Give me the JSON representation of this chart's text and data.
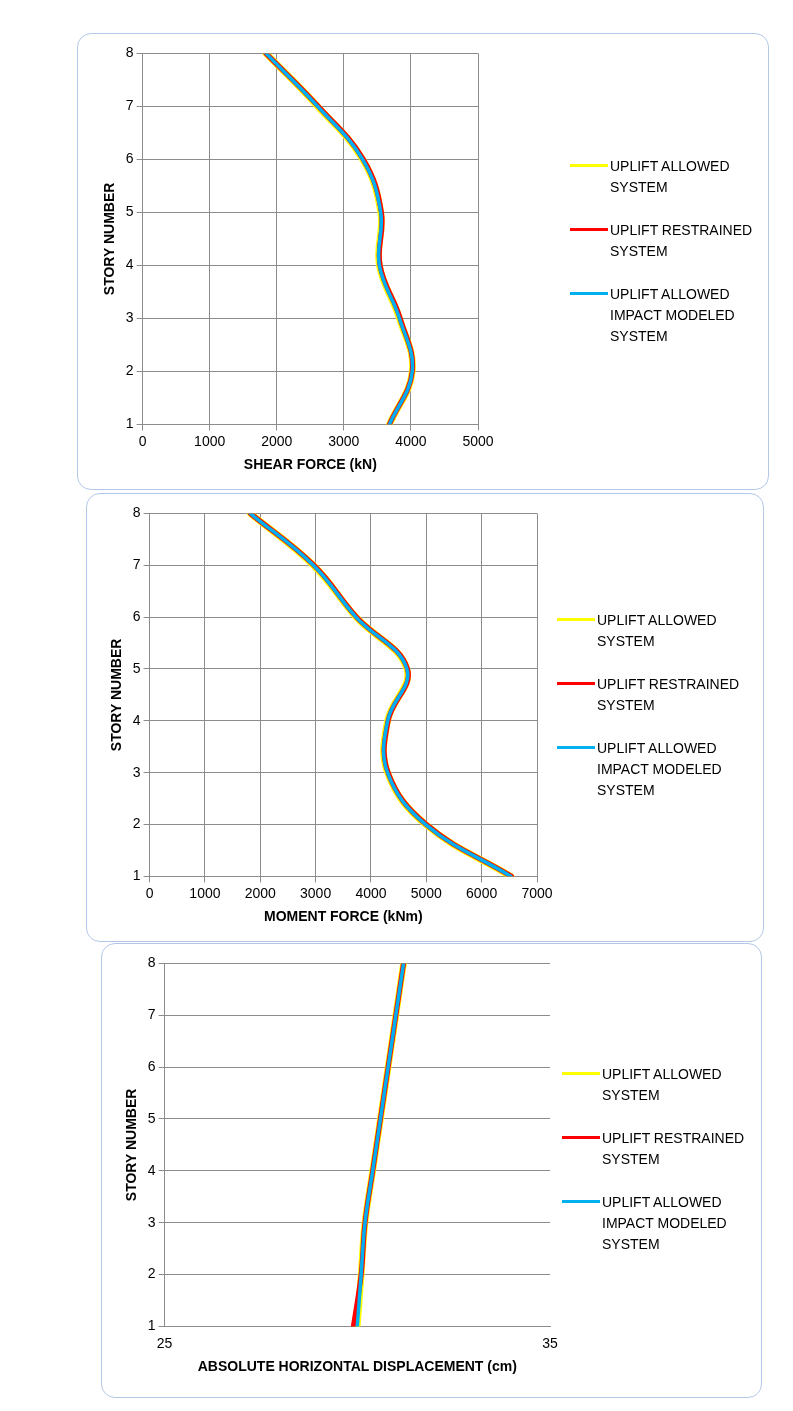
{
  "chart_data": [
    {
      "type": "line",
      "xlabel": "SHEAR FORCE (kN)",
      "ylabel": "STORY NUMBER",
      "xlim": [
        0,
        5000
      ],
      "xticks": [
        0,
        1000,
        2000,
        3000,
        4000,
        5000
      ],
      "ylim": [
        1,
        8
      ],
      "yticks": [
        1,
        2,
        3,
        4,
        5,
        6,
        7,
        8
      ],
      "grid": true,
      "legend": "right",
      "marker": "none",
      "series": [
        {
          "name": "UPLIFT ALLOWED SYSTEM",
          "color": "#ffff00",
          "x": [
            3680,
            4020,
            3830,
            3530,
            3550,
            3280,
            2610,
            1840
          ],
          "values": [
            1,
            2,
            3,
            4,
            5,
            6,
            7,
            8
          ]
        },
        {
          "name": "UPLIFT RESTRAINED SYSTEM",
          "color": "#ff0000",
          "x": [
            3680,
            4020,
            3840,
            3540,
            3560,
            3290,
            2620,
            1840
          ],
          "values": [
            1,
            2,
            3,
            4,
            5,
            6,
            7,
            8
          ]
        },
        {
          "name": "UPLIFT ALLOWED IMPACT MODELED SYSTEM",
          "color": "#00b0f0",
          "x": [
            3680,
            4020,
            3830,
            3530,
            3550,
            3280,
            2610,
            1840
          ],
          "values": [
            1,
            2,
            3,
            4,
            5,
            6,
            7,
            8
          ]
        }
      ]
    },
    {
      "type": "line",
      "xlabel": "MOMENT FORCE (kNm)",
      "ylabel": "STORY NUMBER",
      "xlim": [
        0,
        7000
      ],
      "xticks": [
        0,
        1000,
        2000,
        3000,
        4000,
        5000,
        6000,
        7000
      ],
      "ylim": [
        1,
        8
      ],
      "yticks": [
        1,
        2,
        3,
        4,
        5,
        6,
        7,
        8
      ],
      "grid": true,
      "legend": "right",
      "marker": "none",
      "series": [
        {
          "name": "UPLIFT ALLOWED SYSTEM",
          "color": "#ffff00",
          "x": [
            6530,
            4990,
            4300,
            4300,
            4650,
            3730,
            2960,
            1820
          ],
          "values": [
            1,
            2,
            3,
            4,
            5,
            6,
            7,
            8
          ]
        },
        {
          "name": "UPLIFT RESTRAINED SYSTEM",
          "color": "#ff0000",
          "x": [
            6540,
            5000,
            4310,
            4310,
            4660,
            3740,
            2970,
            1820
          ],
          "values": [
            1,
            2,
            3,
            4,
            5,
            6,
            7,
            8
          ]
        },
        {
          "name": "UPLIFT ALLOWED IMPACT MODELED SYSTEM",
          "color": "#00b0f0",
          "x": [
            6530,
            4990,
            4300,
            4300,
            4650,
            3730,
            2960,
            1820
          ],
          "values": [
            1,
            2,
            3,
            4,
            5,
            6,
            7,
            8
          ]
        }
      ]
    },
    {
      "type": "line",
      "xlabel": "ABSOLUTE HORIZONTAL DISPLACEMENT (cm)",
      "ylabel": "STORY NUMBER",
      "xlim": [
        25,
        35
      ],
      "xticks": [
        25,
        35
      ],
      "ylim": [
        1,
        8
      ],
      "yticks": [
        1,
        2,
        3,
        4,
        5,
        6,
        7,
        8
      ],
      "grid": "y",
      "legend": "right",
      "marker": "none",
      "series": [
        {
          "name": "UPLIFT ALLOWED SYSTEM",
          "color": "#ffff00",
          "x": [
            30.0,
            30.1,
            30.2,
            30.4,
            30.6,
            30.8,
            31.0,
            31.2
          ],
          "values": [
            1,
            2,
            3,
            4,
            5,
            6,
            7,
            8
          ]
        },
        {
          "name": "UPLIFT RESTRAINED SYSTEM",
          "color": "#ff0000",
          "x": [
            29.9,
            30.1,
            30.2,
            30.4,
            30.6,
            30.8,
            31.0,
            31.2
          ],
          "values": [
            1,
            2,
            3,
            4,
            5,
            6,
            7,
            8
          ]
        },
        {
          "name": "UPLIFT ALLOWED IMPACT MODELED SYSTEM",
          "color": "#00b0f0",
          "x": [
            30.0,
            30.1,
            30.2,
            30.4,
            30.6,
            30.8,
            31.0,
            31.2
          ],
          "values": [
            1,
            2,
            3,
            4,
            5,
            6,
            7,
            8
          ]
        }
      ]
    }
  ]
}
